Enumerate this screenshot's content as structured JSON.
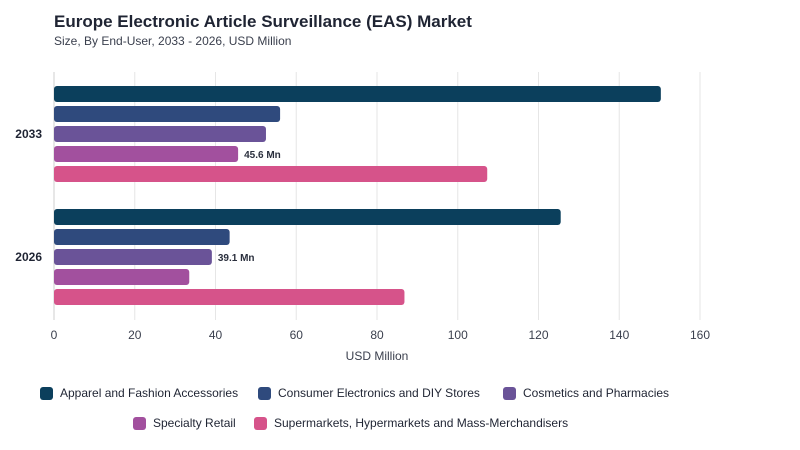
{
  "title": "Europe Electronic Article Surveillance (EAS) Market",
  "subtitle": "Size, By End-User, 2033 - 2026, USD Million",
  "chart_data": {
    "type": "bar",
    "orientation": "horizontal",
    "categories": [
      "2033",
      "2026"
    ],
    "series": [
      {
        "name": "Apparel and Fashion Accessories",
        "color": "#0b3f5c",
        "values": [
          150.3,
          125.5
        ]
      },
      {
        "name": "Consumer Electronics and DIY Stores",
        "color": "#2f4a7d",
        "values": [
          56.0,
          43.5
        ]
      },
      {
        "name": "Cosmetics and Pharmacies",
        "color": "#6a5398",
        "values": [
          52.5,
          39.1
        ]
      },
      {
        "name": "Specialty Retail",
        "color": "#a2509e",
        "values": [
          45.6,
          33.5
        ]
      },
      {
        "name": "Supermarkets, Hypermarkets and Mass-Merchandisers",
        "color": "#d6538a",
        "values": [
          107.3,
          86.8
        ]
      }
    ],
    "data_labels": [
      {
        "category": "2033",
        "series": "Specialty Retail",
        "text": "45.6 Mn"
      },
      {
        "category": "2026",
        "series": "Cosmetics and Pharmacies",
        "text": "39.1 Mn"
      }
    ],
    "xlabel": "USD Million",
    "ylabel": "",
    "xlim": [
      0,
      160
    ],
    "xticks": [
      0,
      20,
      40,
      60,
      80,
      100,
      120,
      140,
      160
    ],
    "grid": true,
    "legend_position": "bottom"
  }
}
